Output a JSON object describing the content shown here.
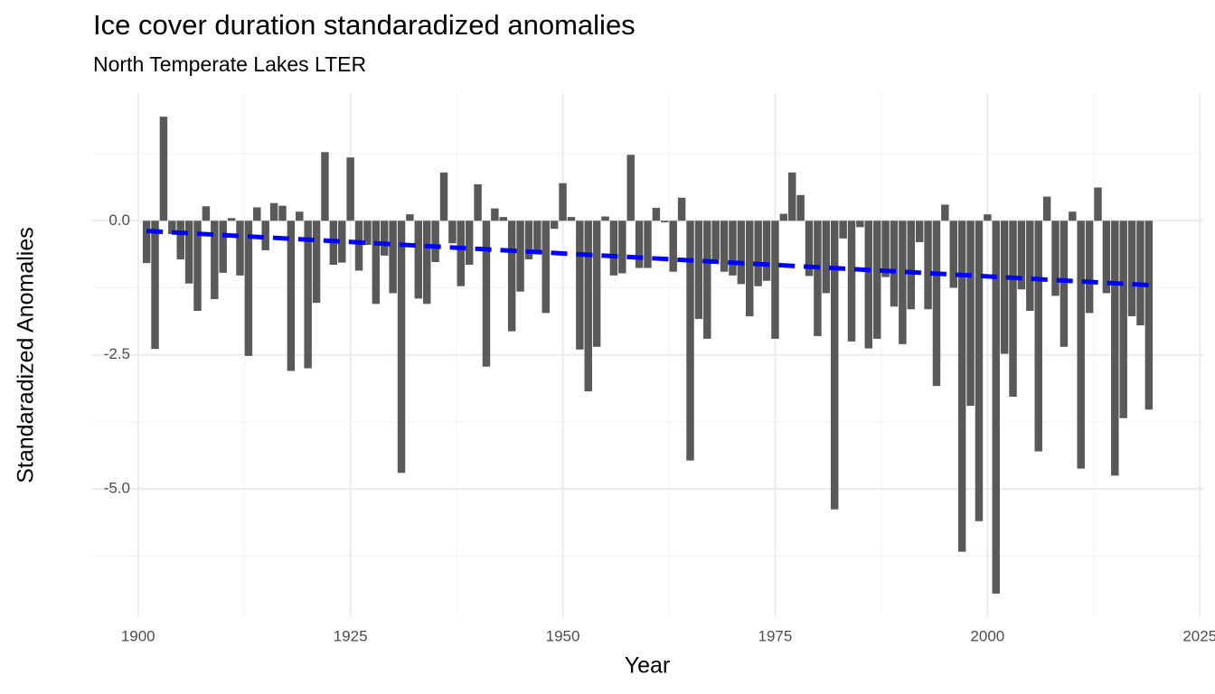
{
  "chart_data": {
    "type": "bar",
    "title": "Ice cover duration standaradized anomalies",
    "subtitle": "North Temperate Lakes LTER",
    "x_label": "Year",
    "y_label": "Standaradized Anomalies",
    "x": [
      1901,
      1902,
      1903,
      1904,
      1905,
      1906,
      1907,
      1908,
      1909,
      1910,
      1911,
      1912,
      1913,
      1914,
      1915,
      1916,
      1917,
      1918,
      1919,
      1920,
      1921,
      1922,
      1923,
      1924,
      1925,
      1926,
      1927,
      1928,
      1929,
      1930,
      1931,
      1932,
      1933,
      1934,
      1935,
      1936,
      1937,
      1938,
      1939,
      1940,
      1941,
      1942,
      1943,
      1944,
      1945,
      1946,
      1947,
      1948,
      1949,
      1950,
      1951,
      1952,
      1953,
      1954,
      1955,
      1956,
      1957,
      1958,
      1959,
      1960,
      1961,
      1962,
      1963,
      1964,
      1965,
      1966,
      1967,
      1968,
      1969,
      1970,
      1971,
      1972,
      1973,
      1974,
      1975,
      1976,
      1977,
      1978,
      1979,
      1980,
      1981,
      1982,
      1983,
      1984,
      1985,
      1986,
      1987,
      1988,
      1989,
      1990,
      1991,
      1992,
      1993,
      1994,
      1995,
      1996,
      1997,
      1998,
      1999,
      2000,
      2001,
      2002,
      2003,
      2004,
      2005,
      2006,
      2007,
      2008,
      2009,
      2010,
      2011,
      2012,
      2013,
      2014,
      2015,
      2016,
      2017,
      2018,
      2019
    ],
    "values": [
      -0.79,
      -2.39,
      1.94,
      -0.25,
      -0.72,
      -1.17,
      -1.68,
      0.27,
      -1.46,
      -0.97,
      0.05,
      -1.02,
      -2.52,
      0.25,
      -0.55,
      0.33,
      0.28,
      -2.8,
      0.17,
      -2.75,
      -1.53,
      1.28,
      -0.82,
      -0.78,
      1.18,
      -0.93,
      -0.45,
      -1.55,
      -0.65,
      -1.35,
      -4.7,
      0.12,
      -1.45,
      -1.55,
      -0.77,
      0.9,
      -0.42,
      -1.22,
      -0.82,
      0.68,
      -2.72,
      0.23,
      0.07,
      -2.06,
      -1.32,
      -0.72,
      -0.62,
      -1.72,
      -0.15,
      0.7,
      0.07,
      -2.4,
      -3.18,
      -2.35,
      0.08,
      -1.02,
      -0.98,
      1.23,
      -0.88,
      -0.88,
      0.24,
      -0.03,
      -0.95,
      0.43,
      -4.47,
      -1.83,
      -2.2,
      -0.72,
      -0.95,
      -1.02,
      -1.18,
      -1.78,
      -1.22,
      -1.12,
      -2.2,
      0.13,
      0.9,
      0.48,
      -1.03,
      -2.15,
      -1.35,
      -5.38,
      -0.33,
      -2.25,
      -0.12,
      -2.38,
      -2.2,
      -1.05,
      -1.6,
      -2.3,
      -1.65,
      -0.4,
      -1.65,
      -3.08,
      0.3,
      -1.25,
      -6.17,
      -3.45,
      -5.6,
      0.12,
      -6.95,
      -2.48,
      -3.28,
      -1.28,
      -1.68,
      -4.3,
      0.45,
      -1.4,
      -2.35,
      0.17,
      -4.62,
      -1.72,
      0.62,
      -1.35,
      -4.75,
      -3.68,
      -1.78,
      -1.95,
      -3.52
    ],
    "color": "#595959",
    "trend": {
      "x": [
        1901,
        2019
      ],
      "values": [
        -0.19,
        -1.2
      ],
      "color": "#0000ff"
    },
    "xlim": [
      1894.6,
      2025.4
    ],
    "ylim": [
      -7.39,
      2.38
    ],
    "xticks": [
      1900,
      1925,
      1950,
      1975,
      2000,
      2025
    ],
    "yticks": [
      {
        "value": -5,
        "label": "-5.0"
      },
      {
        "value": -2.5,
        "label": "-2.5"
      },
      {
        "value": 0,
        "label": "0.0"
      }
    ],
    "xminor": [
      1912.5,
      1937.5,
      1962.5,
      1987.5,
      2012.5
    ],
    "yminor": [
      -6.25,
      -3.75,
      -1.25,
      1.25
    ],
    "grid": true
  }
}
